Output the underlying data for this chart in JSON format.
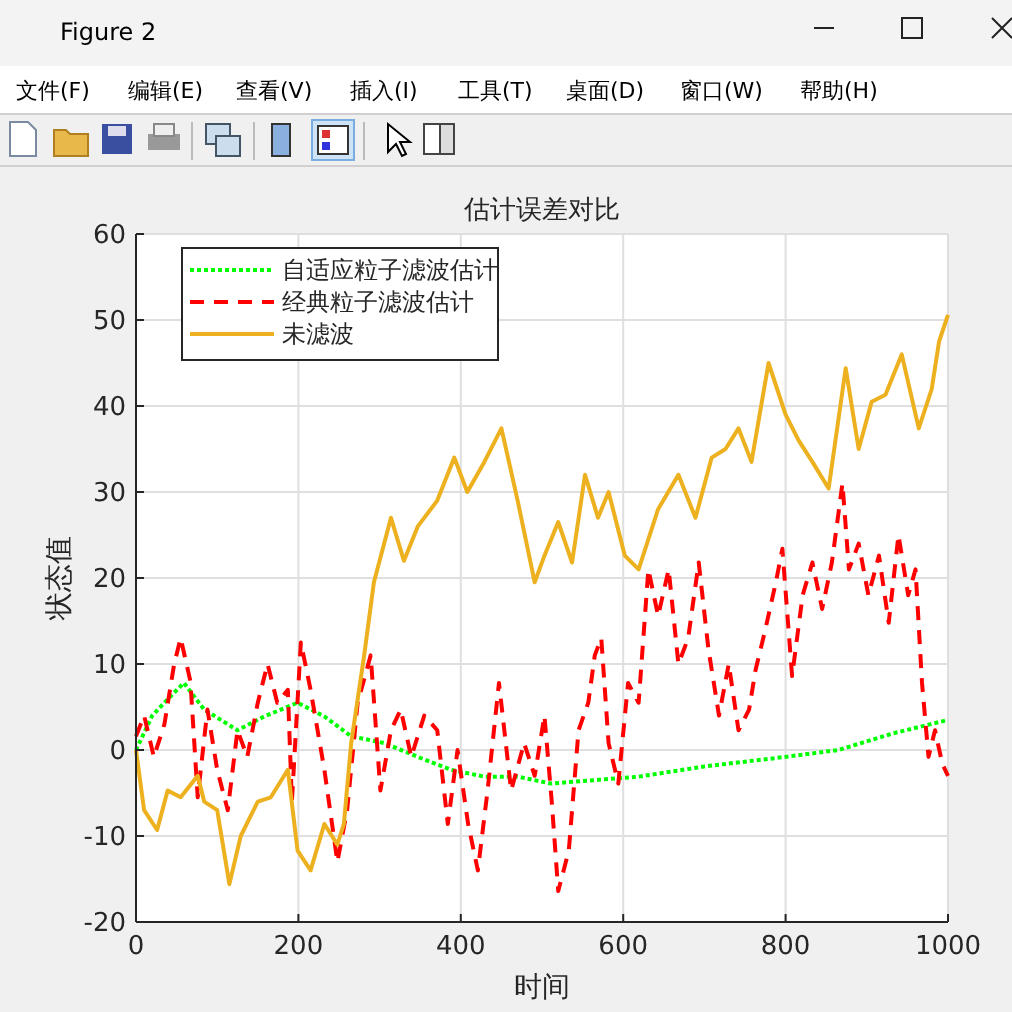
{
  "chart_data": {
    "type": "line",
    "title": "估计误差对比",
    "xlabel": "时间",
    "ylabel": "状态值",
    "annotations": [
      "Figure 2",
      "文件(F)",
      "编辑(E)",
      "查看(V)",
      "插入(I)",
      "工具(T)",
      "桌面(D)",
      "窗口(W)",
      "帮助(H)"
    ],
    "xlim": [
      0,
      1000
    ],
    "ylim": [
      -20,
      60
    ],
    "xticks": [
      0,
      200,
      400,
      600,
      800,
      1000
    ],
    "yticks": [
      -20,
      -10,
      0,
      10,
      20,
      30,
      40,
      50,
      60
    ],
    "grid": true,
    "legend": "top left",
    "marker": "none",
    "series": [
      {
        "name": "自适应粒子滤波估计",
        "color": "#00ff00",
        "line_style": "dotted",
        "x": [
          0,
          20,
          40,
          59,
          84,
          125,
          158,
          199,
          232,
          265,
          306,
          347,
          388,
          429,
          470,
          511,
          619,
          701,
          800,
          865,
          931,
          1000
        ],
        "values": [
          0,
          4,
          6,
          7.8,
          4.7,
          2.3,
          3.9,
          5.5,
          3.9,
          1.6,
          0.8,
          -0.8,
          -2.3,
          -3.1,
          -3.1,
          -3.9,
          -3.1,
          -1.9,
          -0.8,
          0,
          1.9,
          3.5
        ]
      },
      {
        "name": "经典粒子滤波估计",
        "color": "#ff0000",
        "line_style": "dashed",
        "x": [
          0,
          10,
          22,
          35,
          47,
          55,
          67,
          76,
          88,
          100,
          113,
          125,
          137,
          150,
          162,
          174,
          187,
          192,
          203,
          215,
          232,
          248,
          260,
          273,
          289,
          301,
          314,
          326,
          339,
          355,
          371,
          384,
          396,
          409,
          421,
          433,
          447,
          462,
          478,
          491,
          503,
          512,
          520,
          533,
          545,
          557,
          565,
          573,
          582,
          594,
          606,
          619,
          631,
          643,
          656,
          668,
          680,
          693,
          705,
          718,
          730,
          742,
          755,
          763,
          775,
          788,
          796,
          808,
          821,
          833,
          845,
          857,
          870,
          878,
          890,
          902,
          915,
          927,
          939,
          951,
          960,
          968,
          976,
          984,
          993,
          1000
        ],
        "values": [
          1.6,
          4,
          -0.8,
          3,
          10,
          13,
          8,
          -5.5,
          4.7,
          -2.3,
          -7,
          2.3,
          -0.8,
          5.5,
          10,
          5.5,
          7,
          -6,
          12.5,
          7,
          -2.3,
          -13,
          -7,
          5.5,
          11,
          -4.7,
          2.3,
          4.7,
          -0.8,
          4,
          2.3,
          -8.6,
          0,
          -8.6,
          -14,
          -4.7,
          7.8,
          -4.7,
          0.8,
          -3,
          4,
          -6,
          -16.4,
          -11.7,
          2.3,
          5.5,
          11,
          13,
          0.8,
          -3.9,
          7.8,
          5.5,
          21,
          15.6,
          21,
          10,
          13,
          21.8,
          11.7,
          4,
          10,
          2.3,
          4.7,
          9.3,
          14,
          19.5,
          23.4,
          8.6,
          18,
          21.8,
          16.4,
          21.8,
          31,
          21,
          24,
          18,
          22.6,
          14.8,
          25,
          18,
          21,
          7.8,
          -0.8,
          2.3,
          -1.6,
          -3
        ]
      },
      {
        "name": "未滤波",
        "color": "#edb120",
        "line_style": "solid",
        "x": [
          0,
          10,
          26,
          39,
          55,
          76,
          84,
          100,
          115,
          129,
          150,
          166,
          187,
          199,
          215,
          232,
          248,
          256,
          265,
          281,
          293,
          314,
          330,
          347,
          371,
          392,
          408,
          429,
          450,
          470,
          491,
          503,
          520,
          537,
          553,
          569,
          582,
          602,
          619,
          643,
          668,
          689,
          709,
          726,
          742,
          758,
          779,
          800,
          816,
          833,
          853,
          874,
          890,
          906,
          923,
          943,
          964,
          980,
          989,
          1000
        ],
        "values": [
          0,
          -7,
          -9.3,
          -4.7,
          -5.5,
          -3,
          -6,
          -7,
          -15.6,
          -10,
          -6,
          -5.5,
          -2.3,
          -11.7,
          -14,
          -8.6,
          -11,
          -8.6,
          0.8,
          11,
          19.5,
          27,
          22,
          26,
          29,
          34,
          30,
          33.5,
          37.4,
          29,
          19.5,
          22.6,
          26.5,
          21.8,
          32,
          27,
          30,
          22.6,
          21,
          28,
          32,
          27,
          34,
          35,
          37.4,
          33.5,
          45,
          39,
          36,
          33.5,
          30.4,
          44.4,
          35,
          40.5,
          41.3,
          46,
          37.4,
          42,
          47.5,
          50.6
        ]
      }
    ]
  }
}
